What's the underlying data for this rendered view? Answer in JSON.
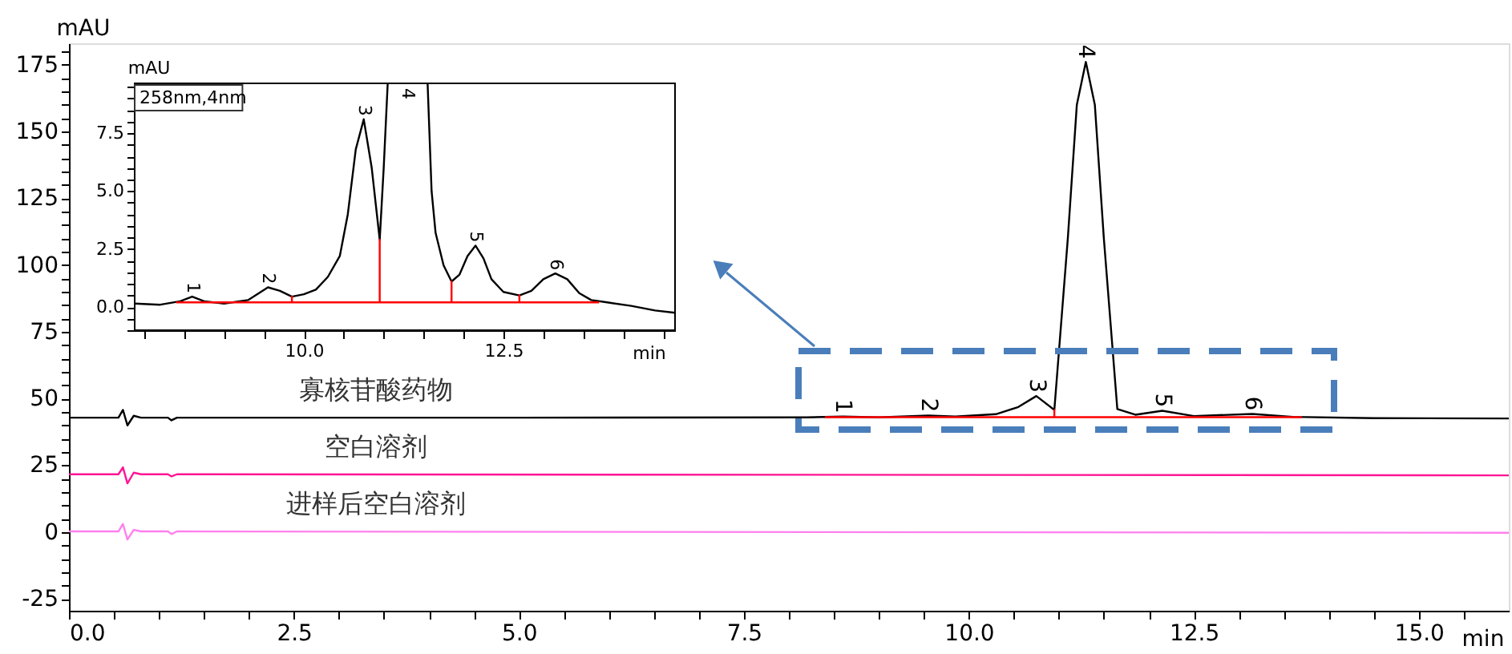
{
  "chart_data": [
    {
      "type": "line",
      "xlabel": "min",
      "ylabel": "mAU",
      "xlim": [
        0,
        16
      ],
      "ylim": [
        -29.5,
        183
      ],
      "xticks": [
        {
          "value": 0,
          "label": "0.0"
        },
        {
          "value": 0.5,
          "label": null
        },
        {
          "value": 1,
          "label": null
        },
        {
          "value": 1.5,
          "label": null
        },
        {
          "value": 2,
          "label": null
        },
        2.5,
        {
          "value": 3,
          "label": null
        },
        {
          "value": 3.5,
          "label": null
        },
        {
          "value": 4,
          "label": null
        },
        {
          "value": 4.5,
          "label": null
        },
        {
          "value": 5,
          "label": "5.0"
        },
        {
          "value": 5.5,
          "label": null
        },
        {
          "value": 6,
          "label": null
        },
        {
          "value": 6.5,
          "label": null
        },
        {
          "value": 7,
          "label": null
        },
        7.5,
        {
          "value": 8,
          "label": null
        },
        {
          "value": 8.5,
          "label": null
        },
        {
          "value": 9,
          "label": null
        },
        {
          "value": 9.5,
          "label": null
        },
        {
          "value": 10,
          "label": "10.0"
        },
        {
          "value": 10.5,
          "label": null
        },
        {
          "value": 11,
          "label": null
        },
        {
          "value": 11.5,
          "label": null
        },
        {
          "value": 12,
          "label": null
        },
        12.5,
        {
          "value": 13,
          "label": null
        },
        {
          "value": 13.5,
          "label": null
        },
        {
          "value": 14,
          "label": null
        },
        {
          "value": 14.5,
          "label": null
        },
        {
          "value": 15,
          "label": "15.0"
        },
        {
          "value": 15.5,
          "label": null
        }
      ],
      "yticks": [
        -25,
        {
          "value": -20,
          "label": null
        },
        {
          "value": -15,
          "label": null
        },
        {
          "value": -10,
          "label": null
        },
        {
          "value": -5,
          "label": null
        },
        0,
        {
          "value": 5,
          "label": null
        },
        {
          "value": 10,
          "label": null
        },
        {
          "value": 15,
          "label": null
        },
        {
          "value": 20,
          "label": null
        },
        25,
        {
          "value": 30,
          "label": null
        },
        {
          "value": 35,
          "label": null
        },
        {
          "value": 40,
          "label": null
        },
        {
          "value": 45,
          "label": null
        },
        50,
        {
          "value": 55,
          "label": null
        },
        {
          "value": 60,
          "label": null
        },
        {
          "value": 65,
          "label": null
        },
        {
          "value": 70,
          "label": null
        },
        75,
        {
          "value": 80,
          "label": null
        },
        {
          "value": 85,
          "label": null
        },
        {
          "value": 90,
          "label": null
        },
        {
          "value": 95,
          "label": null
        },
        100,
        {
          "value": 105,
          "label": null
        },
        {
          "value": 110,
          "label": null
        },
        {
          "value": 115,
          "label": null
        },
        {
          "value": 120,
          "label": null
        },
        125,
        {
          "value": 130,
          "label": null
        },
        {
          "value": 135,
          "label": null
        },
        {
          "value": 140,
          "label": null
        },
        {
          "value": 145,
          "label": null
        },
        150,
        {
          "value": 155,
          "label": null
        },
        {
          "value": 160,
          "label": null
        },
        {
          "value": 165,
          "label": null
        },
        {
          "value": 170,
          "label": null
        },
        175,
        {
          "value": 180,
          "label": null
        }
      ],
      "series": [
        {
          "name": "寡核苷酸药物",
          "color": "#000000",
          "x": [
            0,
            0.55,
            0.6,
            0.65,
            0.72,
            0.8,
            1.1,
            1.14,
            1.2,
            5,
            8.2,
            8.6,
            9.0,
            9.55,
            9.85,
            10.3,
            10.55,
            10.75,
            10.95,
            11.1,
            11.2,
            11.3,
            11.4,
            11.5,
            11.65,
            11.85,
            12.15,
            12.5,
            13.15,
            13.6,
            14.5,
            16
          ],
          "values": [
            42.8,
            42.8,
            45.7,
            39.9,
            43.5,
            42.8,
            42.8,
            41.8,
            42.8,
            42.8,
            42.9,
            43.2,
            42.9,
            43.6,
            43.2,
            44.1,
            46.8,
            50.9,
            45.7,
            110,
            160,
            176,
            160,
            110,
            46,
            43.9,
            45.4,
            43.4,
            44.2,
            43.1,
            42.6,
            42.5
          ]
        },
        {
          "name": "空白溶剂",
          "color": "#ff1493",
          "x": [
            0,
            0.55,
            0.6,
            0.65,
            0.72,
            0.8,
            1.1,
            1.14,
            1.2,
            16
          ],
          "values": [
            21.6,
            21.6,
            24.2,
            18.2,
            22.2,
            21.6,
            21.6,
            20.8,
            21.6,
            21.2
          ]
        },
        {
          "name": "进样后空白溶剂",
          "color": "#ff80ee",
          "x": [
            0,
            0.55,
            0.6,
            0.65,
            0.72,
            0.8,
            1.1,
            1.14,
            1.2,
            16
          ],
          "values": [
            0.2,
            0.2,
            3,
            -2.8,
            0.8,
            0.2,
            0.2,
            -0.8,
            0.2,
            -0.3
          ]
        },
        {
          "color": "#ff0000",
          "x": [
            8.4,
            10.95,
            10.95,
            10.95,
            13.7
          ],
          "values": [
            43,
            43,
            45.7,
            43,
            43
          ]
        }
      ],
      "annotations": [
        {
          "text": "1",
          "x": 8.6,
          "y": 43.2
        },
        {
          "text": "2",
          "x": 9.55,
          "y": 43.6
        },
        {
          "text": "3",
          "x": 10.75,
          "y": 50.9
        },
        {
          "text": "4",
          "x": 11.3,
          "y": 176
        },
        {
          "text": "5",
          "x": 12.15,
          "y": 45.4
        },
        {
          "text": "6",
          "x": 13.15,
          "y": 44.2
        }
      ]
    },
    {
      "type": "line",
      "xlabel": "min",
      "ylabel": "mAU",
      "xlim": [
        7.88,
        14.65
      ],
      "ylim": [
        -1.0,
        9.65
      ],
      "xticks": [
        {
          "value": 8,
          "label": null
        },
        {
          "value": 8.5,
          "label": null
        },
        {
          "value": 9,
          "label": null
        },
        {
          "value": 9.5,
          "label": null
        },
        {
          "value": 10,
          "label": "10.0"
        },
        {
          "value": 10.5,
          "label": null
        },
        {
          "value": 11,
          "label": null
        },
        {
          "value": 11.5,
          "label": null
        },
        {
          "value": 12,
          "label": null
        },
        12.5,
        {
          "value": 13,
          "label": null
        },
        {
          "value": 13.5,
          "label": null
        },
        {
          "value": 14,
          "label": null
        },
        {
          "value": 14.5,
          "label": null
        }
      ],
      "yticks": [
        {
          "value": -1,
          "label": null
        },
        {
          "value": -0.5,
          "label": null
        },
        {
          "value": 0,
          "label": "0.0"
        },
        {
          "value": 0.5,
          "label": null
        },
        {
          "value": 1,
          "label": null
        },
        {
          "value": 1.5,
          "label": null
        },
        {
          "value": 2,
          "label": null
        },
        2.5,
        {
          "value": 3,
          "label": null
        },
        {
          "value": 3.5,
          "label": null
        },
        {
          "value": 4,
          "label": null
        },
        {
          "value": 4.5,
          "label": null
        },
        {
          "value": 5,
          "label": "5.0"
        },
        {
          "value": 5.5,
          "label": null
        },
        {
          "value": 6,
          "label": null
        },
        {
          "value": 6.5,
          "label": null
        },
        {
          "value": 7,
          "label": null
        },
        7.5,
        {
          "value": 8,
          "label": null
        },
        {
          "value": 8.5,
          "label": null
        },
        {
          "value": 9,
          "label": null
        },
        {
          "value": 9.5,
          "label": null
        }
      ],
      "series": [
        {
          "color": "#000000",
          "x": [
            7.88,
            8.2,
            8.45,
            8.6,
            8.75,
            9.0,
            9.3,
            9.55,
            9.7,
            9.85,
            10.0,
            10.15,
            10.3,
            10.45,
            10.55,
            10.65,
            10.75,
            10.85,
            10.95,
            11.0,
            11.05,
            11.3,
            11.55,
            11.6,
            11.65,
            11.75,
            11.85,
            11.95,
            12.05,
            12.15,
            12.25,
            12.35,
            12.5,
            12.7,
            12.85,
            13.0,
            13.15,
            13.3,
            13.45,
            13.6,
            13.8,
            14.1,
            14.4,
            14.65
          ],
          "values": [
            0.15,
            0.1,
            0.25,
            0.45,
            0.25,
            0.15,
            0.3,
            0.85,
            0.7,
            0.45,
            0.55,
            0.75,
            1.3,
            2.2,
            4.0,
            6.8,
            8.1,
            6.0,
            2.9,
            6.0,
            9.64,
            null,
            9.64,
            5,
            3.2,
            1.8,
            1.1,
            1.4,
            2.2,
            2.65,
            2.1,
            1.2,
            0.65,
            0.5,
            0.7,
            1.2,
            1.45,
            1.2,
            0.6,
            0.3,
            0.2,
            0.05,
            -0.15,
            -0.25
          ]
        },
        {
          "color": "#ff0000",
          "x": [
            8.4,
            9.85,
            9.85,
            9.85,
            10.95,
            10.95,
            10.95,
            11.85,
            11.85,
            11.85,
            12.7,
            12.7,
            12.7,
            13.7
          ],
          "values": [
            0.2,
            0.2,
            0.45,
            0.2,
            0.2,
            2.9,
            0.2,
            0.2,
            1.1,
            0.2,
            0.2,
            0.5,
            0.2,
            0.2
          ]
        }
      ],
      "annotations": [
        "258nm,4nm",
        {
          "text": "1",
          "x": 8.6,
          "y": 0.45
        },
        {
          "text": "2",
          "x": 9.55,
          "y": 0.85
        },
        {
          "text": "3",
          "x": 10.75,
          "y": 8.1
        },
        "4",
        {
          "text": "5",
          "x": 12.15,
          "y": 2.65
        },
        {
          "text": "6",
          "x": 13.15,
          "y": 1.45
        }
      ]
    }
  ]
}
